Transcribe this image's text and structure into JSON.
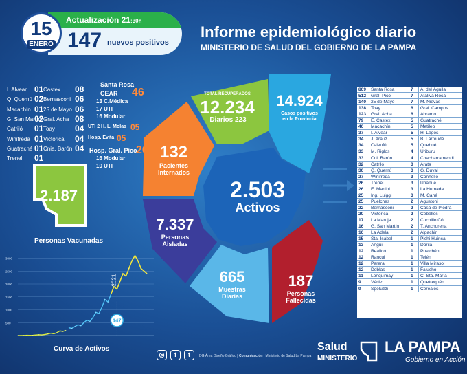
{
  "header": {
    "day": "15",
    "month": "ENERO",
    "update_label": "Actualización 21",
    "update_time": ":30h",
    "positives_count": "147",
    "positives_label": "nuevos positivos",
    "title": "Informe epidemiológico diario",
    "subtitle": "MINISTERIO DE SALUD DEL GOBIERNO DE LA PAMPA"
  },
  "localities_left": [
    {
      "name": "I. Alvear",
      "count": "01"
    },
    {
      "name": "Q. Quemú",
      "count": "02"
    },
    {
      "name": "Macachín",
      "count": "01"
    },
    {
      "name": "G. San Martín",
      "count": "02"
    },
    {
      "name": "Catriló",
      "count": "01"
    },
    {
      "name": "Winifreda",
      "count": "01"
    },
    {
      "name": "Guatraché",
      "count": "01"
    },
    {
      "name": "Trenel",
      "count": "01"
    }
  ],
  "localities_right": [
    {
      "name": "Castex",
      "count": "08"
    },
    {
      "name": "Bernasconi",
      "count": "06"
    },
    {
      "name": "25 de Mayo",
      "count": "06"
    },
    {
      "name": "Gral. Acha",
      "count": "08"
    },
    {
      "name": "Toay",
      "count": "04"
    },
    {
      "name": "Victorica",
      "count": "04"
    },
    {
      "name": "Cnia. Barón",
      "count": "04"
    }
  ],
  "hospitals": {
    "santa_rosa": "Santa Rosa",
    "cear": "CEAR",
    "cear_total": "46",
    "cear_lines": [
      "13 C.Médica",
      "17 UTI",
      "16 Modular"
    ],
    "uti_molas": "UTI 2 H. L. Molas",
    "uti_molas_n": "05",
    "evita": "Hosp. Evita",
    "evita_n": "05",
    "pico": "Hosp. Gral. Pico",
    "pico_total": "26",
    "pico_lines": [
      "16 Modular",
      "10 UTI"
    ]
  },
  "vaccinated": {
    "count": "2.187",
    "label": "Personas Vacunadas"
  },
  "chart": {
    "title": "Curva de Activos",
    "annotation_year": "2021",
    "annotation_value": "147"
  },
  "chart_data": {
    "type": "line",
    "title": "Curva de Activos",
    "y_ticks": [
      "3000",
      "2500",
      "2000",
      "1500",
      "1000",
      "500"
    ],
    "ylim": [
      0,
      3200
    ],
    "values": [
      0,
      0,
      5,
      10,
      8,
      12,
      20,
      30,
      25,
      40,
      60,
      90,
      70,
      110,
      180,
      160,
      200,
      300,
      280,
      350,
      420,
      380,
      500,
      600,
      550,
      700,
      900,
      850,
      1100,
      1400,
      1300,
      1600,
      1900,
      1800,
      2100,
      2400,
      2300,
      2600,
      2900,
      3100,
      2900,
      2600,
      2500,
      2400
    ]
  },
  "segments": {
    "recovered_label": "TOTAL RECUPERADOS",
    "recovered": "12.234",
    "recovered_daily_label": "Diarios",
    "recovered_daily": "223",
    "cases": "14.924",
    "cases_label_1": "Casos positivos",
    "cases_label_2": "en la Provincia",
    "hosp": "132",
    "hosp_label_1": "Pacientes",
    "hosp_label_2": "Internados",
    "isolated": "7.337",
    "isolated_label_1": "Personas",
    "isolated_label_2": "Aisladas",
    "samples": "665",
    "samples_label_1": "Muestras",
    "samples_label_2": "Diarias",
    "deaths": "187",
    "deaths_label_1": "Personas",
    "deaths_label_2": "Fallecidas",
    "active": "2.503",
    "active_label": "Activos"
  },
  "colors": {
    "green": "#8cc63f",
    "blue": "#2aa7e0",
    "orange": "#f58231",
    "purple": "#3b3d9b",
    "lightblue": "#5ab7e8",
    "red": "#b21f2d"
  },
  "table_left": [
    [
      "809",
      "Santa Rosa"
    ],
    [
      "512",
      "Gral. Pico"
    ],
    [
      "140",
      "25 de Mayo"
    ],
    [
      "138",
      "Toay"
    ],
    [
      "123",
      "Gral. Acha"
    ],
    [
      "79",
      "E. Castex"
    ],
    [
      "46",
      "Macachín"
    ],
    [
      "37",
      "I. Alvear"
    ],
    [
      "34",
      "J. Arauz"
    ],
    [
      "34",
      "Caleufú"
    ],
    [
      "33",
      "M. Riglos"
    ],
    [
      "33",
      "Col. Barón"
    ],
    [
      "32",
      "Catriló"
    ],
    [
      "30",
      "Q. Quemú"
    ],
    [
      "27",
      "Winifreda"
    ],
    [
      "26",
      "Trenel"
    ],
    [
      "26",
      "E. Martini"
    ],
    [
      "25",
      "Ing. Luiggi"
    ],
    [
      "25",
      "Puelches"
    ],
    [
      "22",
      "Bernasconi"
    ],
    [
      "20",
      "Victorica"
    ],
    [
      "17",
      "La Maruja"
    ],
    [
      "16",
      "G. San Martín"
    ],
    [
      "16",
      "La Adela"
    ],
    [
      "15",
      "Sta. Isabel"
    ],
    [
      "13",
      "Anguil"
    ],
    [
      "12",
      "Realicó"
    ],
    [
      "12",
      "Rancul"
    ],
    [
      "12",
      "Parera"
    ],
    [
      "12",
      "Doblas"
    ],
    [
      "11",
      "Lonquimay"
    ],
    [
      "9",
      "Vértiz"
    ],
    [
      "9",
      "Speluzzi"
    ]
  ],
  "table_right": [
    [
      "7",
      "A. del Águila"
    ],
    [
      "7",
      "Ataliva Roca"
    ],
    [
      "7",
      "M. Nievas"
    ],
    [
      "6",
      "Gral. Campos"
    ],
    [
      "6",
      "Abramo"
    ],
    [
      "5",
      "Guatraché"
    ],
    [
      "5",
      "Metileo"
    ],
    [
      "5",
      "H. Lagos"
    ],
    [
      "5",
      "B. Larroudé"
    ],
    [
      "5",
      "Quehué"
    ],
    [
      "4",
      "Uriburu"
    ],
    [
      "4",
      "Chacharramendi"
    ],
    [
      "3",
      "Arata"
    ],
    [
      "3",
      "G. Duval"
    ],
    [
      "3",
      "Conhello"
    ],
    [
      "3",
      "Unanue"
    ],
    [
      "3",
      "La Humada"
    ],
    [
      "3",
      "M. Cané"
    ],
    [
      "2",
      "Agustoni"
    ],
    [
      "2",
      "Casa de Piedra"
    ],
    [
      "2",
      "Ceballos"
    ],
    [
      "2",
      "Cuchillo Có"
    ],
    [
      "2",
      "T. Anchorena"
    ],
    [
      "2",
      "Alpachiri"
    ],
    [
      "1",
      "Pichi Huinca"
    ],
    [
      "1",
      "Dorila"
    ],
    [
      "1",
      "Puelchén"
    ],
    [
      "1",
      "Telén"
    ],
    [
      "1",
      "Villa Mirasol"
    ],
    [
      "1",
      "Falucho"
    ],
    [
      "1",
      "C. Sta. María"
    ],
    [
      "1",
      "Quetrequén"
    ],
    [
      "1",
      "Cereales"
    ]
  ],
  "footer": {
    "credit_1": "DG Área Diseño Gráfico | ",
    "credit_2": "Comunicación",
    "credit_3": " | Ministerio de Salud La Pampa",
    "salud": "Salud",
    "ministerio": "MINISTERIO",
    "la_pampa": "LA PAMPA",
    "gobierno": "Gobierno en Acción"
  }
}
